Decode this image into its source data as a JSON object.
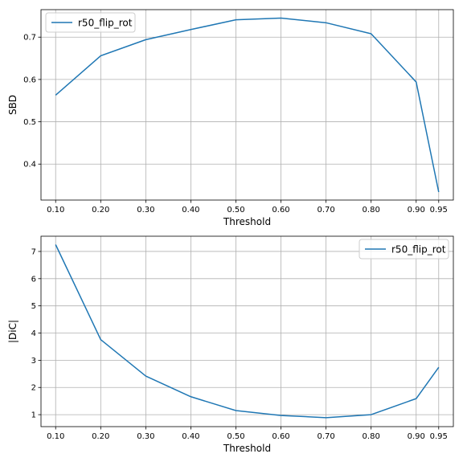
{
  "chart_data": [
    {
      "type": "line",
      "xlabel": "Threshold",
      "ylabel": "SBD",
      "x": [
        0.1,
        0.2,
        0.3,
        0.4,
        0.5,
        0.6,
        0.7,
        0.8,
        0.9,
        0.95
      ],
      "xticks": [
        "0.10",
        "0.20",
        "0.30",
        "0.40",
        "0.50",
        "0.60",
        "0.70",
        "0.80",
        "0.90",
        "0.95"
      ],
      "yticks": [
        "0.4",
        "0.5",
        "0.6",
        "0.7"
      ],
      "ytick_values": [
        0.4,
        0.5,
        0.6,
        0.7
      ],
      "xlim": [
        0.0675,
        0.9825
      ],
      "ylim": [
        0.315,
        0.765
      ],
      "grid": true,
      "legend_placement": "top-left",
      "series": [
        {
          "name": "r50_flip_rot",
          "color": "#1f77b4",
          "values": [
            0.563,
            0.656,
            0.694,
            0.718,
            0.741,
            0.745,
            0.734,
            0.708,
            0.594,
            0.334
          ]
        }
      ]
    },
    {
      "type": "line",
      "xlabel": "Threshold",
      "ylabel": "|DiC|",
      "x": [
        0.1,
        0.2,
        0.3,
        0.4,
        0.5,
        0.6,
        0.7,
        0.8,
        0.9,
        0.95
      ],
      "xticks": [
        "0.10",
        "0.20",
        "0.30",
        "0.40",
        "0.50",
        "0.60",
        "0.70",
        "0.80",
        "0.90",
        "0.95"
      ],
      "yticks": [
        "1",
        "2",
        "3",
        "4",
        "5",
        "6",
        "7"
      ],
      "ytick_values": [
        1,
        2,
        3,
        4,
        5,
        6,
        7
      ],
      "xlim": [
        0.0675,
        0.9825
      ],
      "ylim": [
        0.56,
        7.56
      ],
      "grid": true,
      "legend_placement": "top-right",
      "series": [
        {
          "name": "r50_flip_rot",
          "color": "#1f77b4",
          "values": [
            7.25,
            3.76,
            2.42,
            1.66,
            1.15,
            0.97,
            0.89,
            1.0,
            1.59,
            2.74
          ]
        }
      ]
    }
  ]
}
